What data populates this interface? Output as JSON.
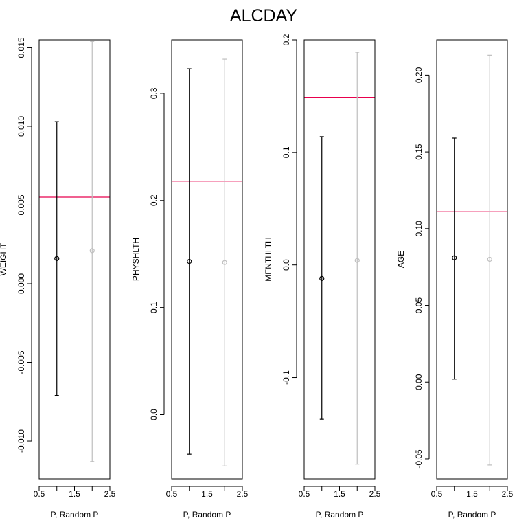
{
  "chart_data": {
    "title": "ALCDAY",
    "type": "scatter",
    "colors": {
      "point": "#000000",
      "random": "#bebebe",
      "line": "#e8004d"
    },
    "panels": [
      {
        "ylabel": "WEIGHT",
        "xlabel": "P, Random P",
        "xlim": [
          0.5,
          2.5
        ],
        "xticks": [
          "0.5",
          "1.5",
          "2.5"
        ],
        "xticks_minor": [
          1.0,
          2.0
        ],
        "ylim": [
          -0.0124,
          0.0155
        ],
        "yticks": [
          "-0.010",
          "-0.005",
          "0.000",
          "0.005",
          "0.010",
          "0.015"
        ],
        "hline": 0.0055,
        "points": [
          {
            "x": 1,
            "y": 0.0016,
            "lo": -0.0071,
            "hi": 0.0103
          },
          {
            "x": 2,
            "y": 0.0021,
            "lo": -0.0113,
            "hi": 0.0154
          }
        ]
      },
      {
        "ylabel": "PHYSHLTH",
        "xlabel": "P, Random P",
        "xlim": [
          0.5,
          2.5
        ],
        "xticks": [
          "0.5",
          "1.5",
          "2.5"
        ],
        "xticks_minor": [
          1.0,
          2.0
        ],
        "ylim": [
          -0.06,
          0.35
        ],
        "yticks": [
          "0.0",
          "0.1",
          "0.2",
          "0.3"
        ],
        "hline": 0.218,
        "points": [
          {
            "x": 1,
            "y": 0.143,
            "lo": -0.037,
            "hi": 0.323
          },
          {
            "x": 2,
            "y": 0.142,
            "lo": -0.048,
            "hi": 0.332
          }
        ]
      },
      {
        "ylabel": "MENTHLTH",
        "xlabel": "P, Random P",
        "xlim": [
          0.5,
          2.5
        ],
        "xticks": [
          "0.5",
          "1.5",
          "2.5"
        ],
        "xticks_minor": [
          1.0,
          2.0
        ],
        "ylim": [
          -0.19,
          0.2
        ],
        "yticks": [
          "-0.1",
          "0.0",
          "0.1",
          "0.2"
        ],
        "hline": 0.149,
        "points": [
          {
            "x": 1,
            "y": -0.012,
            "lo": -0.137,
            "hi": 0.114
          },
          {
            "x": 2,
            "y": 0.004,
            "lo": -0.177,
            "hi": 0.189
          }
        ]
      },
      {
        "ylabel": "AGE",
        "xlabel": "P, Random P",
        "xlim": [
          0.5,
          2.5
        ],
        "xticks": [
          "0.5",
          "1.5",
          "2.5"
        ],
        "xticks_minor": [
          1.0,
          2.0
        ],
        "ylim": [
          -0.063,
          0.223
        ],
        "yticks": [
          "-0.05",
          "0.00",
          "0.05",
          "0.10",
          "0.15",
          "0.20"
        ],
        "hline": 0.111,
        "points": [
          {
            "x": 1,
            "y": 0.081,
            "lo": 0.002,
            "hi": 0.159
          },
          {
            "x": 2,
            "y": 0.08,
            "lo": -0.054,
            "hi": 0.213
          }
        ]
      }
    ]
  }
}
